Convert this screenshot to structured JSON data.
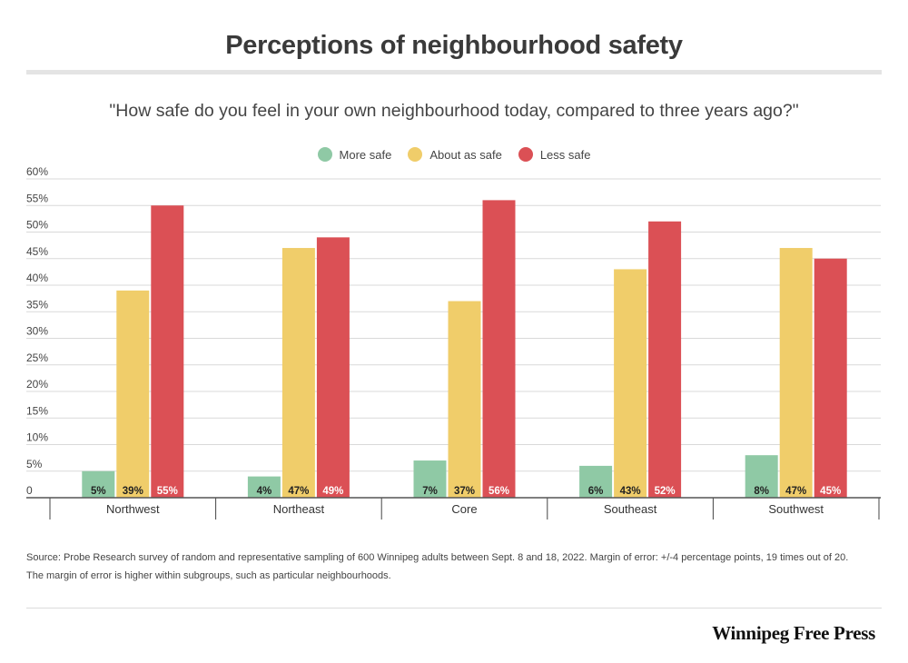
{
  "title": "Perceptions of neighbourhood safety",
  "subtitle": "\"How safe do you feel in your own neighbourhood today, compared to three years ago?\"",
  "source": {
    "line1": "Source: Probe Research survey of random and representative sampling of 600 Winnipeg adults between Sept. 8 and 18, 2022.  Margin of error: +/-4 percentage points, 19 times out of 20.",
    "line2": "The margin of error is higher within subgroups, such as particular neighbourhoods."
  },
  "brand": "Winnipeg Free Press",
  "colors": {
    "more_safe": "#8fc9a5",
    "about_as_safe": "#f0cd6a",
    "less_safe": "#db5055",
    "grid": "#d9d9d9",
    "axis": "#555555"
  },
  "chart_data": {
    "type": "bar",
    "categories": [
      "Northwest",
      "Northeast",
      "Core",
      "Southeast",
      "Southwest"
    ],
    "series": [
      {
        "name": "More safe",
        "values": [
          5,
          4,
          7,
          6,
          8
        ],
        "color": "#8fc9a5"
      },
      {
        "name": "About as safe",
        "values": [
          39,
          47,
          37,
          43,
          47
        ],
        "color": "#f0cd6a"
      },
      {
        "name": "Less safe",
        "values": [
          55,
          49,
          56,
          52,
          45
        ],
        "color": "#db5055"
      }
    ],
    "ylim": [
      0,
      60
    ],
    "yticks": [
      0,
      5,
      10,
      15,
      20,
      25,
      30,
      35,
      40,
      45,
      50,
      55,
      60
    ],
    "ytick_labels": [
      "0",
      "5%",
      "10%",
      "15%",
      "20%",
      "25%",
      "30%",
      "35%",
      "40%",
      "45%",
      "50%",
      "55%",
      "60%"
    ],
    "value_suffix": "%",
    "grid": true,
    "legend_position": "top-center"
  }
}
